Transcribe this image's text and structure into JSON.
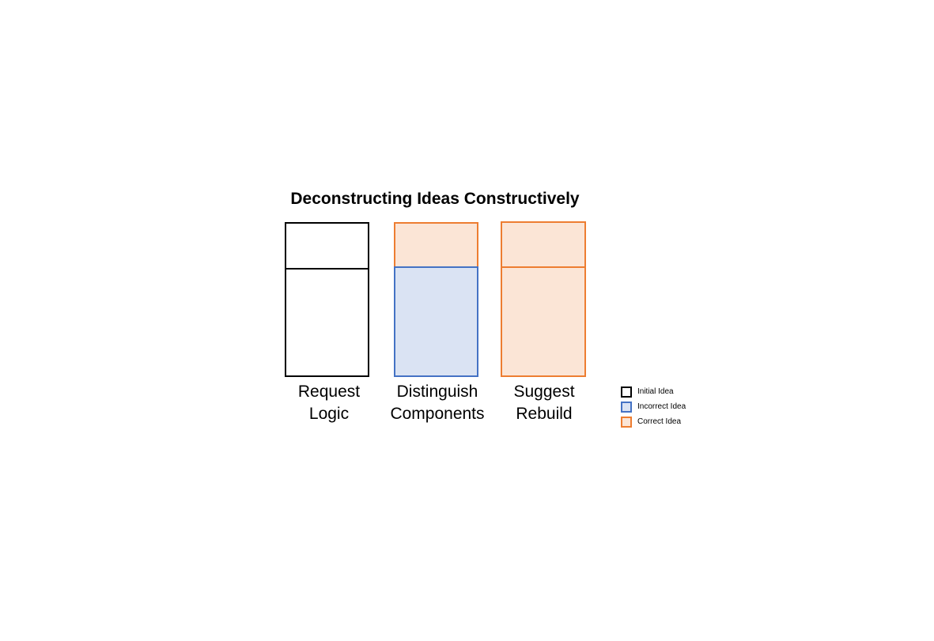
{
  "diagram": {
    "title": "Deconstructing Ideas Constructively",
    "colors": {
      "initial_stroke": "#000000",
      "incorrect_stroke": "#4472C4",
      "incorrect_fill": "#DAE3F3",
      "correct_stroke": "#ED7D31",
      "correct_fill": "#FBE5D6"
    },
    "columns": [
      {
        "label_line1": "Request",
        "label_line2": "Logic"
      },
      {
        "label_line1": "Distinguish",
        "label_line2": "Components"
      },
      {
        "label_line1": "Suggest",
        "label_line2": "Rebuild"
      }
    ],
    "legend": [
      {
        "label": "Initial Idea"
      },
      {
        "label": "Incorrect Idea"
      },
      {
        "label": "Correct Idea"
      }
    ]
  }
}
